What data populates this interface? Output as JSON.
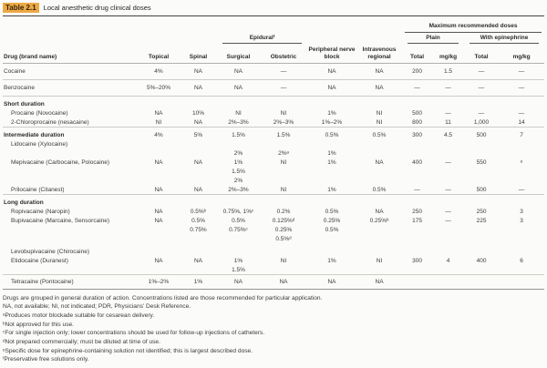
{
  "title": {
    "badge": "Table 2.1",
    "caption": "Local anesthetic drug clinical doses"
  },
  "colors": {
    "title_highlight": "#ecaa44",
    "rule_dark": "#434343",
    "rule_light": "#cfccc7"
  },
  "table": {
    "headers": {
      "drug": "Drug (brand name)",
      "topical": "Topical",
      "spinal": "Spinal",
      "epidural": "Epiduralᶠ",
      "surgical": "Surgical",
      "obstetric": "Obstetric",
      "peripheral": "Peripheral nerve block",
      "intravenous": "Intravenous regional",
      "max_doses": "Maximum recommended doses",
      "plain": "Plain",
      "with_epinephrine": "With epinephrine",
      "plain_total": "Total",
      "plain_mgkg": "mg/kg",
      "epi_total": "Total",
      "epi_mgkg": "mg/kg"
    },
    "rows": [
      {
        "cls": "top rule",
        "cells": [
          "Cocaine",
          "4%",
          "NA",
          "NA",
          "—",
          "NA",
          "NA",
          "200",
          "1.5",
          "—",
          "—"
        ]
      },
      {
        "cls": "top rule",
        "cells": [
          "Benzocaine",
          "5%–20%",
          "NA",
          "NA",
          "—",
          "NA",
          "NA",
          "—",
          "—",
          "—",
          "—"
        ]
      },
      {
        "cls": "section",
        "cells": [
          "Short duration",
          "",
          "",
          "",
          "",
          "",
          "",
          "",
          "",
          "",
          ""
        ]
      },
      {
        "cls": "indent",
        "cells": [
          "Procaine (Novocaine)",
          "NA",
          "10%",
          "NI",
          "NI",
          "1%",
          "NI",
          "500",
          "—",
          "—",
          "—"
        ]
      },
      {
        "cls": "indent rule",
        "cells": [
          "2-Chloroprocaine (nesacaine)",
          "NI",
          "NA",
          "2%–3%",
          "2%–3%",
          "1%–2%",
          "NI",
          "800",
          "11",
          "1,000",
          "14"
        ]
      },
      {
        "cls": "section",
        "cells": [
          "Intermediate duration",
          "4%",
          "5%",
          "1.5%",
          "1.5%",
          "0.5%",
          "0.5%",
          "300",
          "4.5",
          "500",
          "7"
        ]
      },
      {
        "cls": "indent",
        "cells": [
          "Lidocaine (Xylocaine)",
          "",
          "",
          "",
          "",
          "",
          "",
          "",
          "",
          "",
          ""
        ]
      },
      {
        "cls": "indent",
        "cells": [
          "",
          "",
          "",
          "2%",
          "2%ᵃ",
          "1%",
          "",
          "",
          "",
          "",
          ""
        ]
      },
      {
        "cls": "indent",
        "cells": [
          "Mepivacaine (Carbocaine, Polocaine)",
          "NA",
          "NA",
          "1%",
          "NI",
          "1%",
          "NA",
          "400",
          "—",
          "550",
          "ᵉ"
        ]
      },
      {
        "cls": "indent",
        "cells": [
          "",
          "",
          "",
          "1.5%",
          "",
          "",
          "",
          "",
          "",
          "",
          ""
        ]
      },
      {
        "cls": "indent",
        "cells": [
          "",
          "",
          "",
          "2%",
          "",
          "",
          "",
          "",
          "",
          "",
          ""
        ]
      },
      {
        "cls": "indent rule",
        "cells": [
          "Prilocaine (Citanest)",
          "NA",
          "NA",
          "2%–3%",
          "NI",
          "1%",
          "0.5%",
          "—",
          "—",
          "500",
          "—"
        ]
      },
      {
        "cls": "section",
        "cells": [
          "Long duration",
          "",
          "",
          "",
          "",
          "",
          "",
          "",
          "",
          "",
          ""
        ]
      },
      {
        "cls": "indent",
        "cells": [
          "Ropivacaine (Naropin)",
          "NA",
          "0.5%ᵇ",
          "0.75%, 1%ᶜ",
          "0.2%",
          "0.5%",
          "NA",
          "250",
          "—",
          "250",
          "3"
        ]
      },
      {
        "cls": "indent",
        "cells": [
          "Bupivacaine (Marcaine, Sensorcaine)",
          "NA",
          "0.5%",
          "0.5%",
          "0.125%ᵈ",
          "0.25%",
          "0.25%ᵇ",
          "175",
          "—",
          "225",
          "3"
        ]
      },
      {
        "cls": "indent",
        "cells": [
          "",
          "",
          "0.75%",
          "0.75%ᶜ",
          "0.25%",
          "0.5%",
          "",
          "",
          "",
          "",
          ""
        ]
      },
      {
        "cls": "indent",
        "cells": [
          "",
          "",
          "",
          "",
          "0.5%ᵈ",
          "",
          "",
          "",
          "",
          "",
          ""
        ]
      },
      {
        "cls": "spacer",
        "cells": [
          "",
          "",
          "",
          "",
          "",
          "",
          "",
          "",
          "",
          "",
          ""
        ]
      },
      {
        "cls": "indent",
        "cells": [
          "Levobupivacaine (Chirocaine)",
          "",
          "",
          "",
          "",
          "",
          "",
          "",
          "",
          "",
          ""
        ]
      },
      {
        "cls": "indent",
        "cells": [
          "Etidocaine (Duranest)",
          "NA",
          "NA",
          "1%",
          "NI",
          "1%",
          "NI",
          "300",
          "4",
          "400",
          "6"
        ]
      },
      {
        "cls": "indent rule",
        "cells": [
          "",
          "",
          "",
          "1.5%",
          "",
          "",
          "",
          "",
          "",
          "",
          ""
        ]
      },
      {
        "cls": "indent last",
        "cells": [
          "Tetracaine (Pontocaine)",
          "1%–2%",
          "1%",
          "NA",
          "NA",
          "NA",
          "NA",
          "",
          "",
          "",
          ""
        ]
      }
    ]
  },
  "footnotes": [
    "Drugs are grouped in general duration of action. Concentrations listed are those recommended for particular application.",
    "NA, not available; NI, not indicated; PDR, Physicians’ Desk Reference.",
    "ᵃProduces motor blockade suitable for cesarean delivery.",
    "ᵇNot approved for this use.",
    "ᶜFor single injection only; lower concentrations should be used for follow-up injections of catheters.",
    "ᵈNot prepared commercially; must be diluted at time of use.",
    "ᵉSpecific dose for epinephrine-containing solution not identified; this is largest described dose.",
    "ᶠPreservative free solutions only."
  ]
}
